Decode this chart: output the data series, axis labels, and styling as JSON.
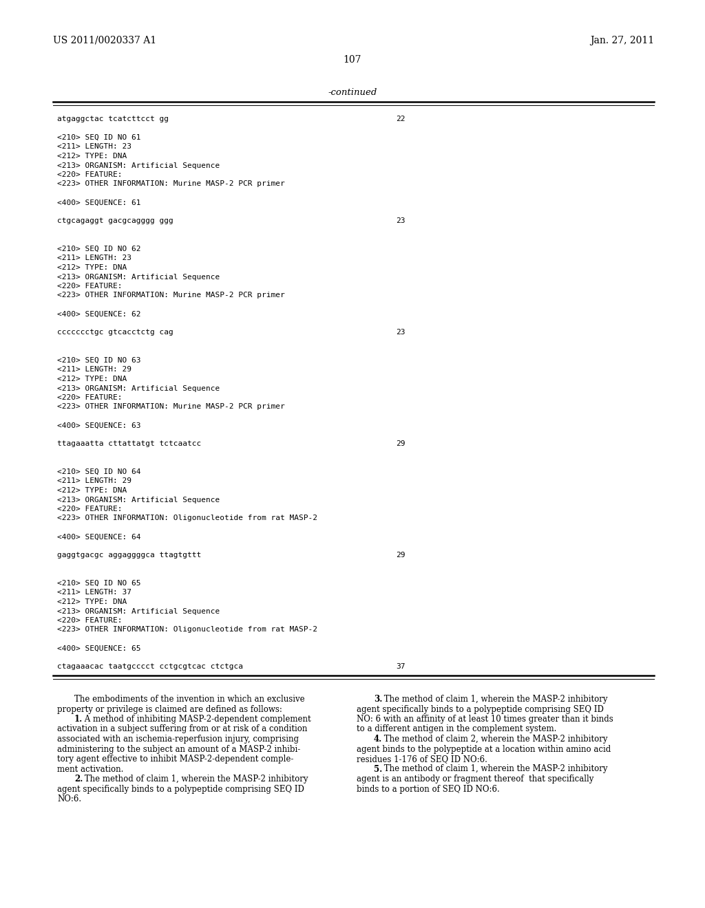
{
  "bg_color": "#ffffff",
  "header_left": "US 2011/0020337 A1",
  "header_right": "Jan. 27, 2011",
  "page_number": "107",
  "continued_label": "-continued",
  "mono_content": [
    {
      "text": "atgaggctac tcatcttcct gg",
      "num": "22"
    },
    {
      "text": ""
    },
    {
      "text": "<210> SEQ ID NO 61"
    },
    {
      "text": "<211> LENGTH: 23"
    },
    {
      "text": "<212> TYPE: DNA"
    },
    {
      "text": "<213> ORGANISM: Artificial Sequence"
    },
    {
      "text": "<220> FEATURE:"
    },
    {
      "text": "<223> OTHER INFORMATION: Murine MASP-2 PCR primer"
    },
    {
      "text": ""
    },
    {
      "text": "<400> SEQUENCE: 61"
    },
    {
      "text": ""
    },
    {
      "text": "ctgcagaggt gacgcagggg ggg",
      "num": "23"
    },
    {
      "text": ""
    },
    {
      "text": ""
    },
    {
      "text": "<210> SEQ ID NO 62"
    },
    {
      "text": "<211> LENGTH: 23"
    },
    {
      "text": "<212> TYPE: DNA"
    },
    {
      "text": "<213> ORGANISM: Artificial Sequence"
    },
    {
      "text": "<220> FEATURE:"
    },
    {
      "text": "<223> OTHER INFORMATION: Murine MASP-2 PCR primer"
    },
    {
      "text": ""
    },
    {
      "text": "<400> SEQUENCE: 62"
    },
    {
      "text": ""
    },
    {
      "text": "ccccccctgc gtcacctctg cag",
      "num": "23"
    },
    {
      "text": ""
    },
    {
      "text": ""
    },
    {
      "text": "<210> SEQ ID NO 63"
    },
    {
      "text": "<211> LENGTH: 29"
    },
    {
      "text": "<212> TYPE: DNA"
    },
    {
      "text": "<213> ORGANISM: Artificial Sequence"
    },
    {
      "text": "<220> FEATURE:"
    },
    {
      "text": "<223> OTHER INFORMATION: Murine MASP-2 PCR primer"
    },
    {
      "text": ""
    },
    {
      "text": "<400> SEQUENCE: 63"
    },
    {
      "text": ""
    },
    {
      "text": "ttagaaatta cttattatgt tctcaatcc",
      "num": "29"
    },
    {
      "text": ""
    },
    {
      "text": ""
    },
    {
      "text": "<210> SEQ ID NO 64"
    },
    {
      "text": "<211> LENGTH: 29"
    },
    {
      "text": "<212> TYPE: DNA"
    },
    {
      "text": "<213> ORGANISM: Artificial Sequence"
    },
    {
      "text": "<220> FEATURE:"
    },
    {
      "text": "<223> OTHER INFORMATION: Oligonucleotide from rat MASP-2"
    },
    {
      "text": ""
    },
    {
      "text": "<400> SEQUENCE: 64"
    },
    {
      "text": ""
    },
    {
      "text": "gaggtgacgc aggaggggca ttagtgttt",
      "num": "29"
    },
    {
      "text": ""
    },
    {
      "text": ""
    },
    {
      "text": "<210> SEQ ID NO 65"
    },
    {
      "text": "<211> LENGTH: 37"
    },
    {
      "text": "<212> TYPE: DNA"
    },
    {
      "text": "<213> ORGANISM: Artificial Sequence"
    },
    {
      "text": "<220> FEATURE:"
    },
    {
      "text": "<223> OTHER INFORMATION: Oligonucleotide from rat MASP-2"
    },
    {
      "text": ""
    },
    {
      "text": "<400> SEQUENCE: 65"
    },
    {
      "text": ""
    },
    {
      "text": "ctagaaacac taatgcccct cctgcgtcac ctctgca",
      "num": "37"
    }
  ],
  "claims_left": [
    {
      "indent": true,
      "text": "The embodiments of the invention in which an exclusive"
    },
    {
      "indent": false,
      "text": "property or privilege is claimed are defined as follows:"
    },
    {
      "indent": true,
      "bold_prefix": "1.",
      "text": " A method of inhibiting MASP-2-dependent complement"
    },
    {
      "indent": false,
      "text": "activation in a subject suffering from or at risk of a condition"
    },
    {
      "indent": false,
      "text": "associated with an ischemia-reperfusion injury, comprising"
    },
    {
      "indent": false,
      "text": "administering to the subject an amount of a MASP-2 inhibi-"
    },
    {
      "indent": false,
      "text": "tory agent effective to inhibit MASP-2-dependent comple-"
    },
    {
      "indent": false,
      "text": "ment activation."
    },
    {
      "indent": true,
      "bold_prefix": "2.",
      "text": " The method of claim 1, wherein the MASP-2 inhibitory"
    },
    {
      "indent": false,
      "text": "agent specifically binds to a polypeptide comprising SEQ ID"
    },
    {
      "indent": false,
      "text": "NO:6."
    }
  ],
  "claims_right": [
    {
      "indent": true,
      "bold_prefix": "3.",
      "text": " The method of claim 1, wherein the MASP-2 inhibitory"
    },
    {
      "indent": false,
      "text": "agent specifically binds to a polypeptide comprising SEQ ID"
    },
    {
      "indent": false,
      "text": "NO: 6 with an affinity of at least 10 times greater than it binds"
    },
    {
      "indent": false,
      "text": "to a different antigen in the complement system."
    },
    {
      "indent": true,
      "bold_prefix": "4.",
      "text": " The method of claim 2, wherein the MASP-2 inhibitory"
    },
    {
      "indent": false,
      "text": "agent binds to the polypeptide at a location within amino acid"
    },
    {
      "indent": false,
      "text": "residues 1-176 of SEQ ID NO:6."
    },
    {
      "indent": true,
      "bold_prefix": "5.",
      "text": " The method of claim 1, wherein the MASP-2 inhibitory"
    },
    {
      "indent": false,
      "text": "agent is an antibody or fragment thereof  that specifically"
    },
    {
      "indent": false,
      "text": "binds to a portion of SEQ ID NO:6."
    }
  ],
  "mono_font_size": 8.0,
  "claims_font_size": 8.5,
  "header_font_size": 10.0
}
